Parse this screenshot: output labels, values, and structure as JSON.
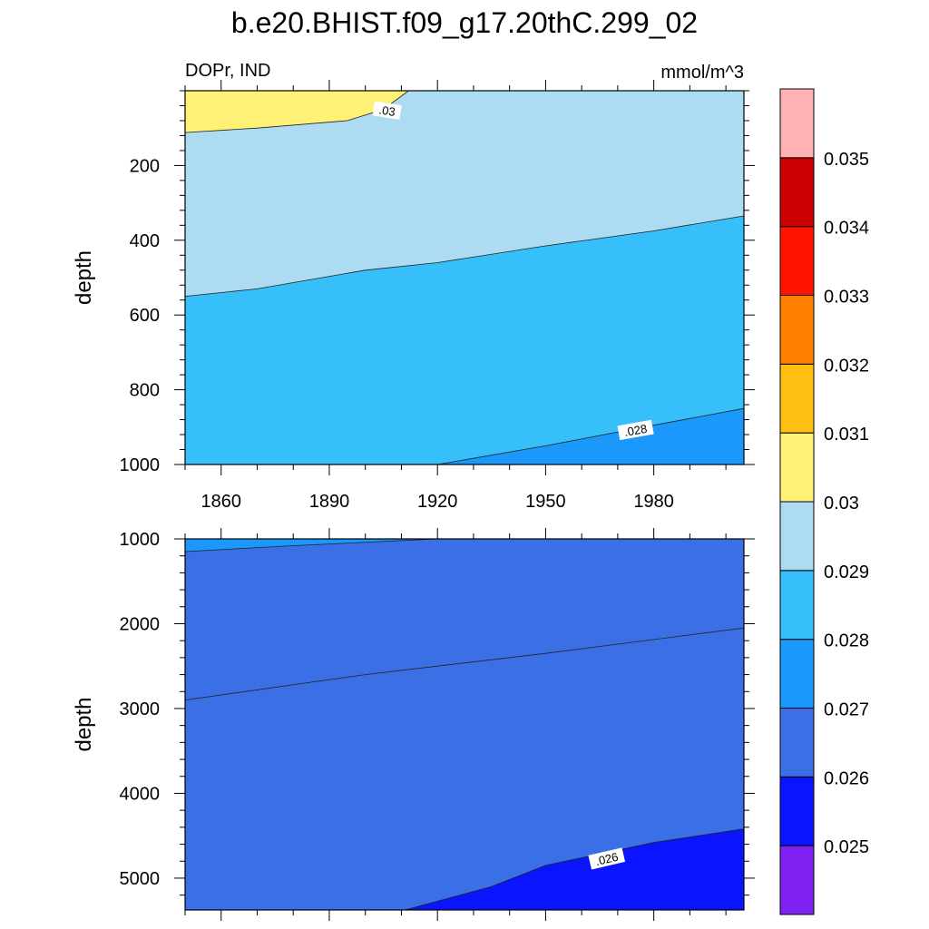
{
  "title": "b.e20.BHIST.f09_g17.20thC.299_02",
  "left_subtitle": "DOPr, IND",
  "right_subtitle": "mmol/m^3",
  "chart_data": [
    {
      "type": "contour",
      "panel": "upper",
      "ylabel": "depth",
      "xlim": [
        1850,
        2005
      ],
      "ylim": [
        0,
        1000
      ],
      "y_reversed": true,
      "x_ticks": [
        1860,
        1890,
        1920,
        1950,
        1980
      ],
      "x_tick_labels": [
        "1860",
        "1890",
        "1920",
        "1950",
        "1980"
      ],
      "y_ticks": [
        200,
        400,
        600,
        800,
        1000
      ],
      "y_tick_labels": [
        "200",
        "400",
        "600",
        "800",
        "1000"
      ],
      "bands": [
        {
          "range": [
            0.028,
            0.029
          ],
          "color": "#36bff9",
          "boundary": [
            [
              1850,
              550
            ],
            [
              1870,
              530
            ],
            [
              1900,
              480
            ],
            [
              1920,
              460
            ],
            [
              1950,
              415
            ],
            [
              1980,
              375
            ],
            [
              2005,
              335
            ]
          ]
        },
        {
          "range": [
            0.03,
            0.031
          ],
          "color": "#fff176",
          "boundary": [
            [
              1850,
              112
            ],
            [
              1870,
              100
            ],
            [
              1895,
              80
            ],
            [
              1905,
              50
            ],
            [
              1912,
              0
            ]
          ]
        },
        {
          "range": [
            0.027,
            0.028
          ],
          "color": "#1a98fb",
          "boundary": [
            [
              1920,
              1000
            ],
            [
              1950,
              950
            ],
            [
              1980,
              895
            ],
            [
              2005,
              850
            ]
          ]
        }
      ],
      "contour_labels": [
        {
          "text": ".03",
          "x": 1906,
          "y": 55,
          "angle": 9
        },
        {
          "text": ".028",
          "x": 1975,
          "y": 910,
          "angle": -10
        }
      ]
    },
    {
      "type": "contour",
      "panel": "lower",
      "ylabel": "depth",
      "xlim": [
        1850,
        2005
      ],
      "ylim": [
        1000,
        5375
      ],
      "y_reversed": true,
      "y_ticks": [
        1000,
        2000,
        3000,
        4000,
        5000
      ],
      "y_tick_labels": [
        "1000",
        "2000",
        "3000",
        "4000",
        "5000"
      ],
      "bands": [
        {
          "range": [
            0.027,
            0.028
          ],
          "color": "#1a98fb",
          "boundary": [
            [
              1850,
              1150
            ],
            [
              1880,
              1080
            ],
            [
              1920,
              1000
            ]
          ]
        },
        {
          "range": [
            0.026,
            0.027
          ],
          "color": "#3b6fe5",
          "boundary": [
            [
              1850,
              2900
            ],
            [
              1900,
              2600
            ],
            [
              1950,
              2350
            ],
            [
              2005,
              2050
            ]
          ]
        },
        {
          "range": [
            0.025,
            0.026
          ],
          "color": "#0a14ff",
          "boundary": [
            [
              1911,
              5375
            ],
            [
              1935,
              5100
            ],
            [
              1950,
              4850
            ],
            [
              1980,
              4580
            ],
            [
              2005,
              4420
            ]
          ]
        }
      ],
      "contour_labels": [
        {
          "text": ".026",
          "x": 1967,
          "y": 4780,
          "angle": -13
        }
      ]
    }
  ],
  "colorbar": {
    "colors": [
      "#7f22f1",
      "#0a14ff",
      "#3b6fe5",
      "#1a98fb",
      "#36bff9",
      "#acdbf2",
      "#fff176",
      "#ffc011",
      "#ff7f00",
      "#ff1200",
      "#cc0000",
      "#ffb2b3"
    ],
    "labels": [
      "0.025",
      "0.026",
      "0.027",
      "0.028",
      "0.029",
      "0.03",
      "0.031",
      "0.032",
      "0.033",
      "0.034",
      "0.035"
    ]
  },
  "colors": {
    "upper_background": "#acdbf2",
    "lower_background": "#3b6fe5"
  }
}
